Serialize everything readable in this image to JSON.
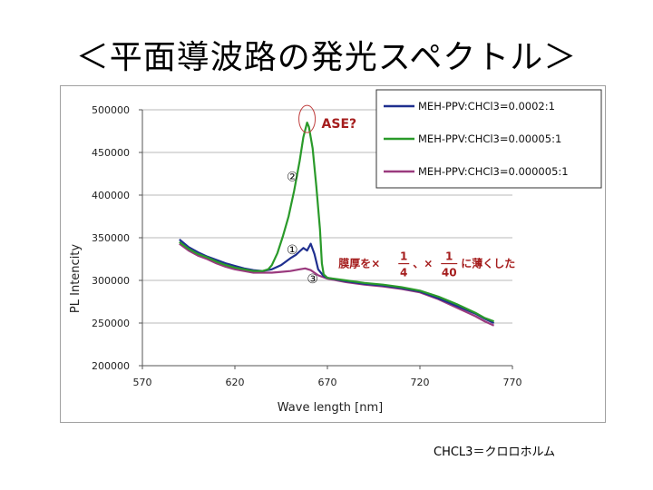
{
  "slide": {
    "title": "＜平面導波路の発光スペクトル＞",
    "footnote": "CHCL3＝クロロホルム"
  },
  "chart_data": {
    "type": "line",
    "xlabel": "Wave length [nm]",
    "ylabel": "PL Intencity",
    "xlim": [
      570,
      770
    ],
    "ylim": [
      200000,
      500000
    ],
    "xticks": [
      570,
      620,
      670,
      720,
      770
    ],
    "yticks": [
      200000,
      250000,
      300000,
      350000,
      400000,
      450000,
      500000
    ],
    "grid": "horizontal",
    "legend_position": "top-right",
    "series": [
      {
        "name": "MEH-PPV:CHCl3=0.0002:1",
        "color": "#1f2f8f",
        "points": [
          [
            590,
            348000
          ],
          [
            595,
            339000
          ],
          [
            600,
            333000
          ],
          [
            605,
            328000
          ],
          [
            610,
            324000
          ],
          [
            615,
            320000
          ],
          [
            620,
            317000
          ],
          [
            625,
            314000
          ],
          [
            630,
            312000
          ],
          [
            635,
            311000
          ],
          [
            640,
            313000
          ],
          [
            645,
            318000
          ],
          [
            650,
            326000
          ],
          [
            653,
            330000
          ],
          [
            655,
            334000
          ],
          [
            657,
            338000
          ],
          [
            659,
            335000
          ],
          [
            661,
            343000
          ],
          [
            663,
            331000
          ],
          [
            665,
            313000
          ],
          [
            668,
            305000
          ],
          [
            670,
            303000
          ],
          [
            680,
            299000
          ],
          [
            690,
            296000
          ],
          [
            700,
            294000
          ],
          [
            710,
            291000
          ],
          [
            720,
            287000
          ],
          [
            730,
            279000
          ],
          [
            740,
            270000
          ],
          [
            750,
            261000
          ],
          [
            755,
            255000
          ],
          [
            760,
            250000
          ]
        ]
      },
      {
        "name": "MEH-PPV:CHCl3=0.00005:1",
        "color": "#2a9a2a",
        "points": [
          [
            590,
            345000
          ],
          [
            595,
            337000
          ],
          [
            600,
            331000
          ],
          [
            605,
            327000
          ],
          [
            610,
            322000
          ],
          [
            615,
            318000
          ],
          [
            620,
            315000
          ],
          [
            625,
            313000
          ],
          [
            630,
            311000
          ],
          [
            635,
            311000
          ],
          [
            638,
            313000
          ],
          [
            640,
            318000
          ],
          [
            643,
            332000
          ],
          [
            646,
            352000
          ],
          [
            649,
            375000
          ],
          [
            652,
            405000
          ],
          [
            655,
            440000
          ],
          [
            657,
            468000
          ],
          [
            659,
            485000
          ],
          [
            660,
            480000
          ],
          [
            662,
            455000
          ],
          [
            664,
            410000
          ],
          [
            666,
            360000
          ],
          [
            667,
            320000
          ],
          [
            668,
            307000
          ],
          [
            670,
            303000
          ],
          [
            680,
            300000
          ],
          [
            690,
            297000
          ],
          [
            700,
            295000
          ],
          [
            710,
            292000
          ],
          [
            720,
            288000
          ],
          [
            730,
            281000
          ],
          [
            740,
            272000
          ],
          [
            750,
            262000
          ],
          [
            755,
            256000
          ],
          [
            760,
            252000
          ]
        ]
      },
      {
        "name": "MEH-PPV:CHCl3=0.000005:1",
        "color": "#9a3a7e",
        "points": [
          [
            590,
            343000
          ],
          [
            595,
            335000
          ],
          [
            600,
            329000
          ],
          [
            605,
            325000
          ],
          [
            610,
            320000
          ],
          [
            615,
            316000
          ],
          [
            620,
            313000
          ],
          [
            625,
            311000
          ],
          [
            630,
            309000
          ],
          [
            635,
            309000
          ],
          [
            640,
            309000
          ],
          [
            645,
            310000
          ],
          [
            650,
            311000
          ],
          [
            655,
            313000
          ],
          [
            658,
            314000
          ],
          [
            661,
            312000
          ],
          [
            665,
            306000
          ],
          [
            670,
            302000
          ],
          [
            680,
            298000
          ],
          [
            690,
            295000
          ],
          [
            700,
            293000
          ],
          [
            710,
            290000
          ],
          [
            720,
            286000
          ],
          [
            730,
            278000
          ],
          [
            740,
            268000
          ],
          [
            750,
            258000
          ],
          [
            755,
            252000
          ],
          [
            760,
            247000
          ]
        ]
      }
    ],
    "annotations": {
      "ase_label": "ASE?",
      "ase_x": 659,
      "ase_y": 485000,
      "marker_1": "①",
      "marker_1_x": 651,
      "marker_1_y": 336000,
      "marker_2": "②",
      "marker_2_x": 651,
      "marker_2_y": 422000,
      "marker_3": "③",
      "marker_3_x": 662,
      "marker_3_y": 302000,
      "note_a": "膜厚を×",
      "note_b": "、×",
      "note_c": "に薄くした",
      "frac1_num": "1",
      "frac1_den": "4",
      "frac2_num": "1",
      "frac2_den": "40"
    }
  }
}
